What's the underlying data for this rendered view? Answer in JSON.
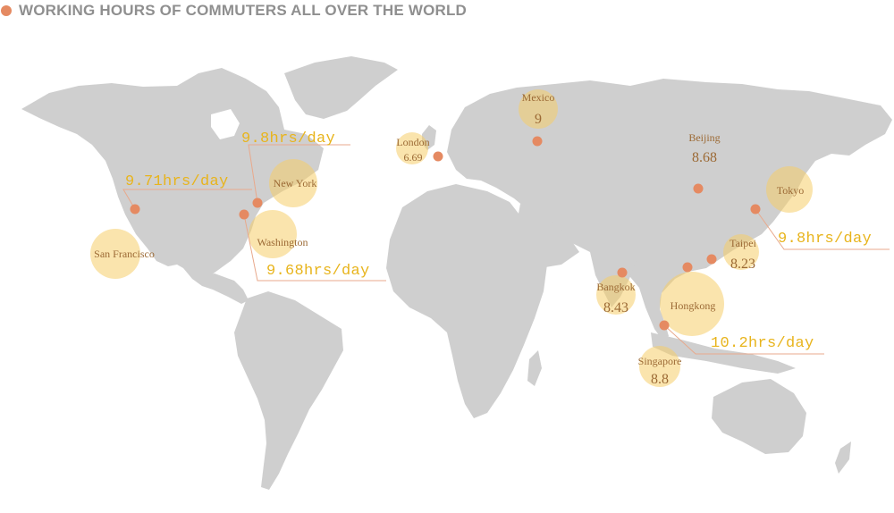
{
  "title": "WORKING HOURS OF COMMUTERS ALL OVER THE WORLD",
  "colors": {
    "land": "#cfcfcf",
    "bubble": "#f5cd6a",
    "dot": "#e58a62",
    "label": "#9c6a35",
    "hours": "#e8b41c",
    "title": "#8f8f8f"
  },
  "cities": [
    {
      "id": "san-francisco",
      "label": "San Francisco",
      "value": ""
    },
    {
      "id": "new-york",
      "label": "New York",
      "value": ""
    },
    {
      "id": "washington",
      "label": "Washington",
      "value": ""
    },
    {
      "id": "london",
      "label": "London",
      "value": "6.69"
    },
    {
      "id": "mexico",
      "label": "Mexico",
      "value": "9"
    },
    {
      "id": "beijing",
      "label": "Beijing",
      "value": "8.68"
    },
    {
      "id": "tokyo",
      "label": "Tokyo",
      "value": ""
    },
    {
      "id": "taipei",
      "label": "Taipei",
      "value": "8.23"
    },
    {
      "id": "bangkok",
      "label": "Bangkok",
      "value": "8.43"
    },
    {
      "id": "hongkong",
      "label": "Hongkong",
      "value": ""
    },
    {
      "id": "singapore",
      "label": "Singapore",
      "value": "8.8"
    }
  ],
  "callouts": [
    {
      "id": "ny",
      "text": "9.8hrs/day"
    },
    {
      "id": "sf",
      "text": "9.71hrs/day"
    },
    {
      "id": "wa",
      "text": "9.68hrs/day"
    },
    {
      "id": "tk",
      "text": "9.8hrs/day"
    },
    {
      "id": "hk",
      "text": "10.2hrs/day"
    }
  ]
}
